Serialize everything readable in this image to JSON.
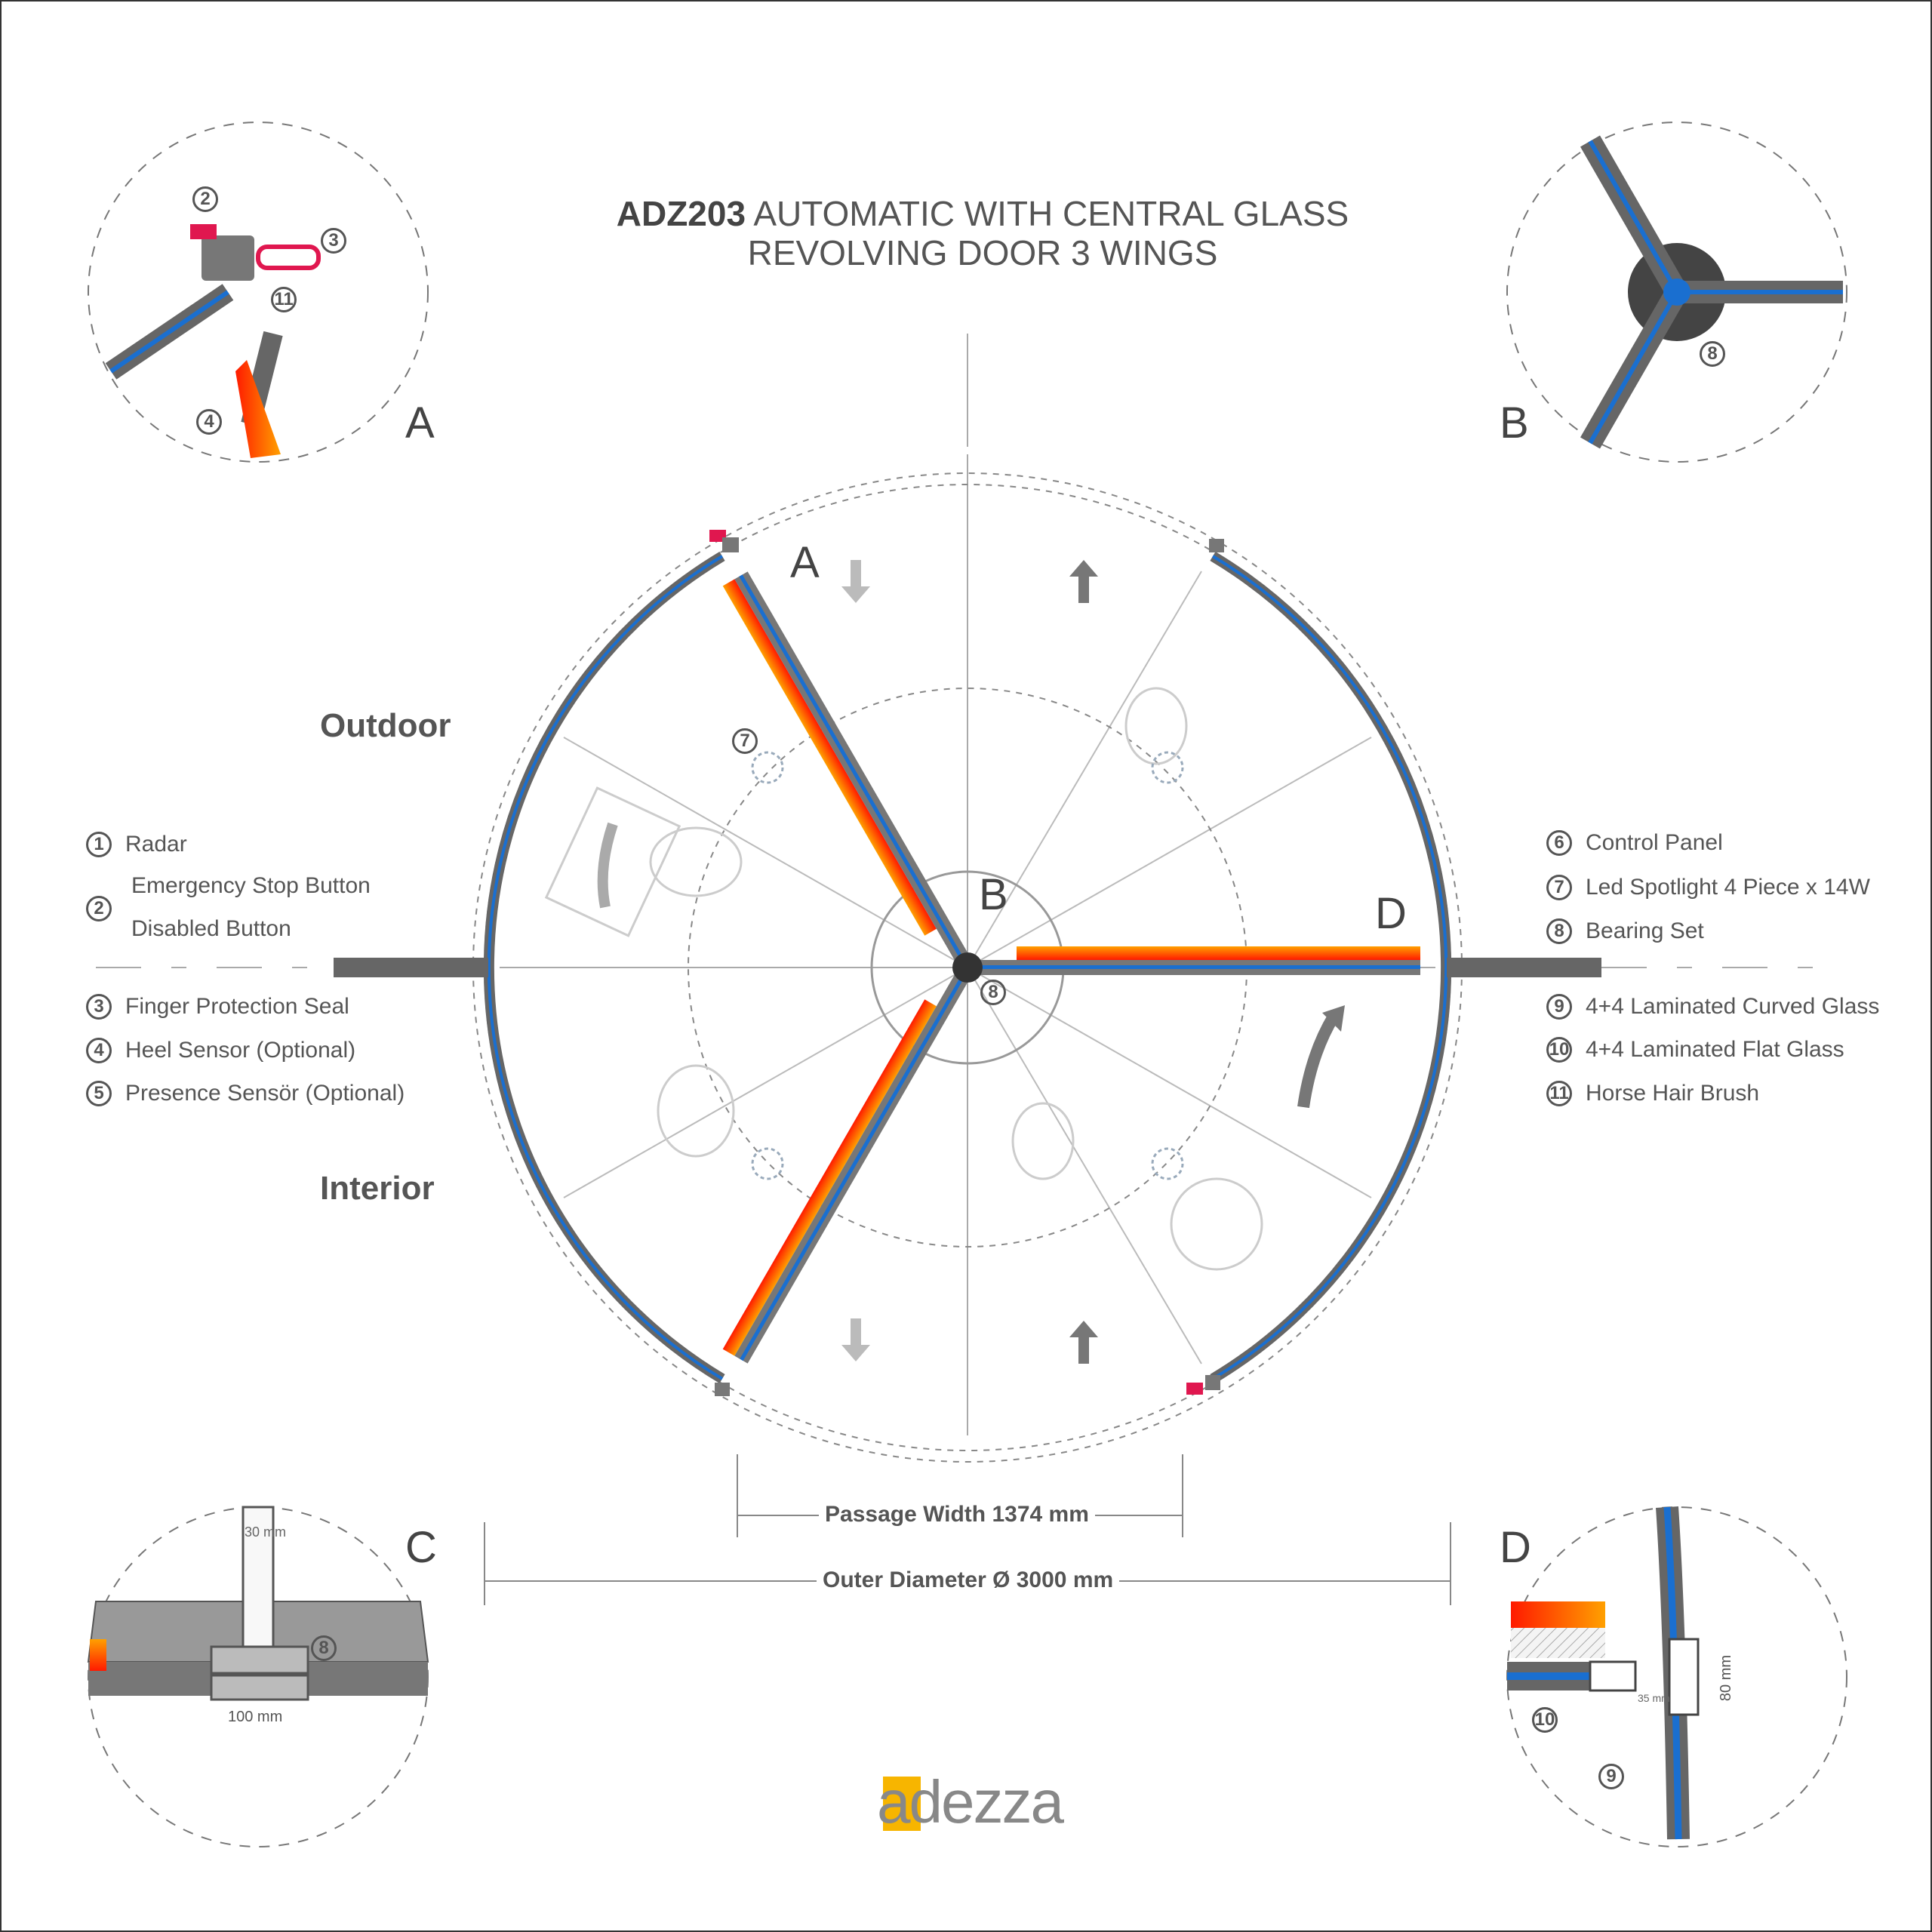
{
  "title": {
    "model": "ADZ203",
    "line1_rest": "AUTOMATIC WITH CENTRAL GLASS",
    "line2": "REVOLVING DOOR 3 WINGS"
  },
  "zones": {
    "outdoor": "Outdoor",
    "interior": "Interior"
  },
  "legend_left": [
    {
      "num": "1",
      "label": "Radar"
    },
    {
      "num": "2",
      "label": "Emergency Stop Button",
      "label2": "Disabled Button"
    },
    {
      "num": "3",
      "label": "Finger Protection Seal"
    },
    {
      "num": "4",
      "label": "Heel Sensor (Optional)"
    },
    {
      "num": "5",
      "label": "Presence Sensör (Optional)"
    }
  ],
  "legend_right": [
    {
      "num": "6",
      "label": "Control Panel"
    },
    {
      "num": "7",
      "label": "Led Spotlight 4 Piece x 14W"
    },
    {
      "num": "8",
      "label": "Bearing Set"
    },
    {
      "num": "9",
      "label": "4+4 Laminated Curved Glass"
    },
    {
      "num": "10",
      "label": "4+4 Laminated Flat Glass"
    },
    {
      "num": "11",
      "label": "Horse Hair Brush"
    }
  ],
  "detail_labels": {
    "a": "A",
    "b": "B",
    "c": "C",
    "d": "D"
  },
  "callouts": {
    "n2": "2",
    "n3": "3",
    "n4": "4",
    "n7": "7",
    "n8": "8",
    "n9": "9",
    "n10": "10",
    "n11": "11"
  },
  "dimensions": {
    "passage": "Passage Width 1374 mm",
    "outer": "Outer Diameter Ø 3000 mm",
    "c_top": "30 mm",
    "c_bottom": "100 mm",
    "d_gap": "35 mm",
    "d_height": "80 mm"
  },
  "logo": "adezza",
  "colors": {
    "glass": "#0a6fd6",
    "frame": "#6e6e6e",
    "heat": "#ff3300",
    "heat2": "#ffa000",
    "button": "#e0174f",
    "logo_accent": "#f7b500"
  }
}
